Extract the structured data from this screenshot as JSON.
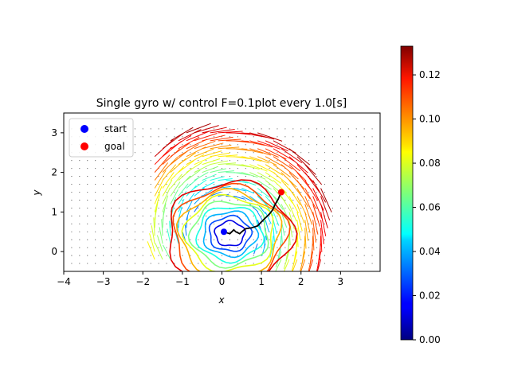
{
  "chart_data": {
    "type": "scatter",
    "title": "Single gyro w/ control F=0.1plot every 1.0[s]",
    "xlabel": "x",
    "ylabel": "y",
    "xlim": [
      -4,
      4
    ],
    "ylim": [
      -0.5,
      3.5
    ],
    "xticks": [
      "−4",
      "−3",
      "−2",
      "−1",
      "0",
      "1",
      "2",
      "3"
    ],
    "xtick_values": [
      -4,
      -3,
      -2,
      -1,
      0,
      1,
      2,
      3
    ],
    "yticks": [
      "0",
      "1",
      "2",
      "3"
    ],
    "ytick_values": [
      0,
      1,
      2,
      3
    ],
    "legend_position": "top-left",
    "series": [
      {
        "name": "start",
        "color": "#0000ff",
        "marker": "circle",
        "points": [
          [
            0.05,
            0.5
          ]
        ]
      },
      {
        "name": "goal",
        "color": "#ff0000",
        "marker": "circle",
        "points": [
          [
            1.5,
            1.5
          ]
        ]
      }
    ],
    "trajectory": {
      "color": "#000000",
      "points": [
        [
          0.05,
          0.5
        ],
        [
          0.2,
          0.45
        ],
        [
          0.3,
          0.55
        ],
        [
          0.35,
          0.5
        ],
        [
          0.45,
          0.45
        ],
        [
          0.5,
          0.5
        ],
        [
          0.6,
          0.58
        ],
        [
          0.75,
          0.6
        ],
        [
          0.9,
          0.65
        ],
        [
          1.0,
          0.75
        ],
        [
          1.1,
          0.85
        ],
        [
          1.2,
          0.95
        ],
        [
          1.28,
          1.05
        ],
        [
          1.35,
          1.2
        ],
        [
          1.42,
          1.32
        ],
        [
          1.5,
          1.5
        ]
      ]
    },
    "colorbar": {
      "colormap": "jet",
      "range": [
        0,
        0.133
      ],
      "ticks": [
        "0.00",
        "0.02",
        "0.04",
        "0.06",
        "0.08",
        "0.10",
        "0.12"
      ],
      "tick_values": [
        0,
        0.02,
        0.04,
        0.06,
        0.08,
        0.1,
        0.12
      ]
    },
    "quiver_grid": {
      "x_range": [
        -3.8,
        3.8
      ],
      "y_range": [
        -0.3,
        3.1
      ],
      "background_marker": "dot"
    }
  }
}
